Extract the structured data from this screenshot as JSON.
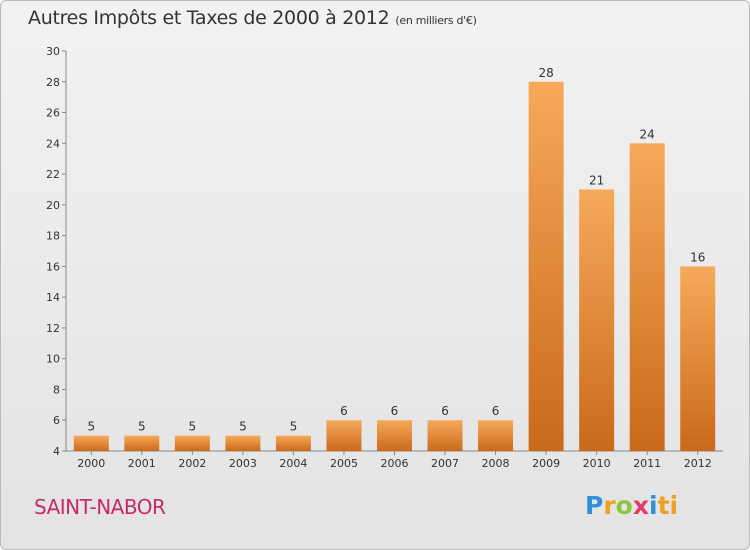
{
  "header": {
    "title": "Autres Impôts et Taxes de 2000 à 2012",
    "subtitle": "(en milliers d'€)"
  },
  "footer": {
    "commune": "SAINT-NABOR",
    "logo_letters": [
      "P",
      "r",
      "o",
      "x",
      "i",
      "ti"
    ]
  },
  "colors": {
    "bar_light": "#f7a95a",
    "bar_dark": "#c96a1a",
    "commune": "#c72a6a"
  },
  "chart_data": {
    "type": "bar",
    "title": "Autres Impôts et Taxes de 2000 à 2012",
    "subtitle": "(en milliers d'€)",
    "categories": [
      "2000",
      "2001",
      "2002",
      "2003",
      "2004",
      "2005",
      "2006",
      "2007",
      "2008",
      "2009",
      "2010",
      "2011",
      "2012"
    ],
    "values": [
      5,
      5,
      5,
      5,
      5,
      6,
      6,
      6,
      6,
      28,
      21,
      24,
      16
    ],
    "ylim": [
      4,
      30
    ],
    "yticks": [
      4,
      6,
      8,
      10,
      12,
      14,
      16,
      18,
      20,
      22,
      24,
      26,
      28,
      30
    ],
    "grid": false,
    "data_labels": true
  }
}
